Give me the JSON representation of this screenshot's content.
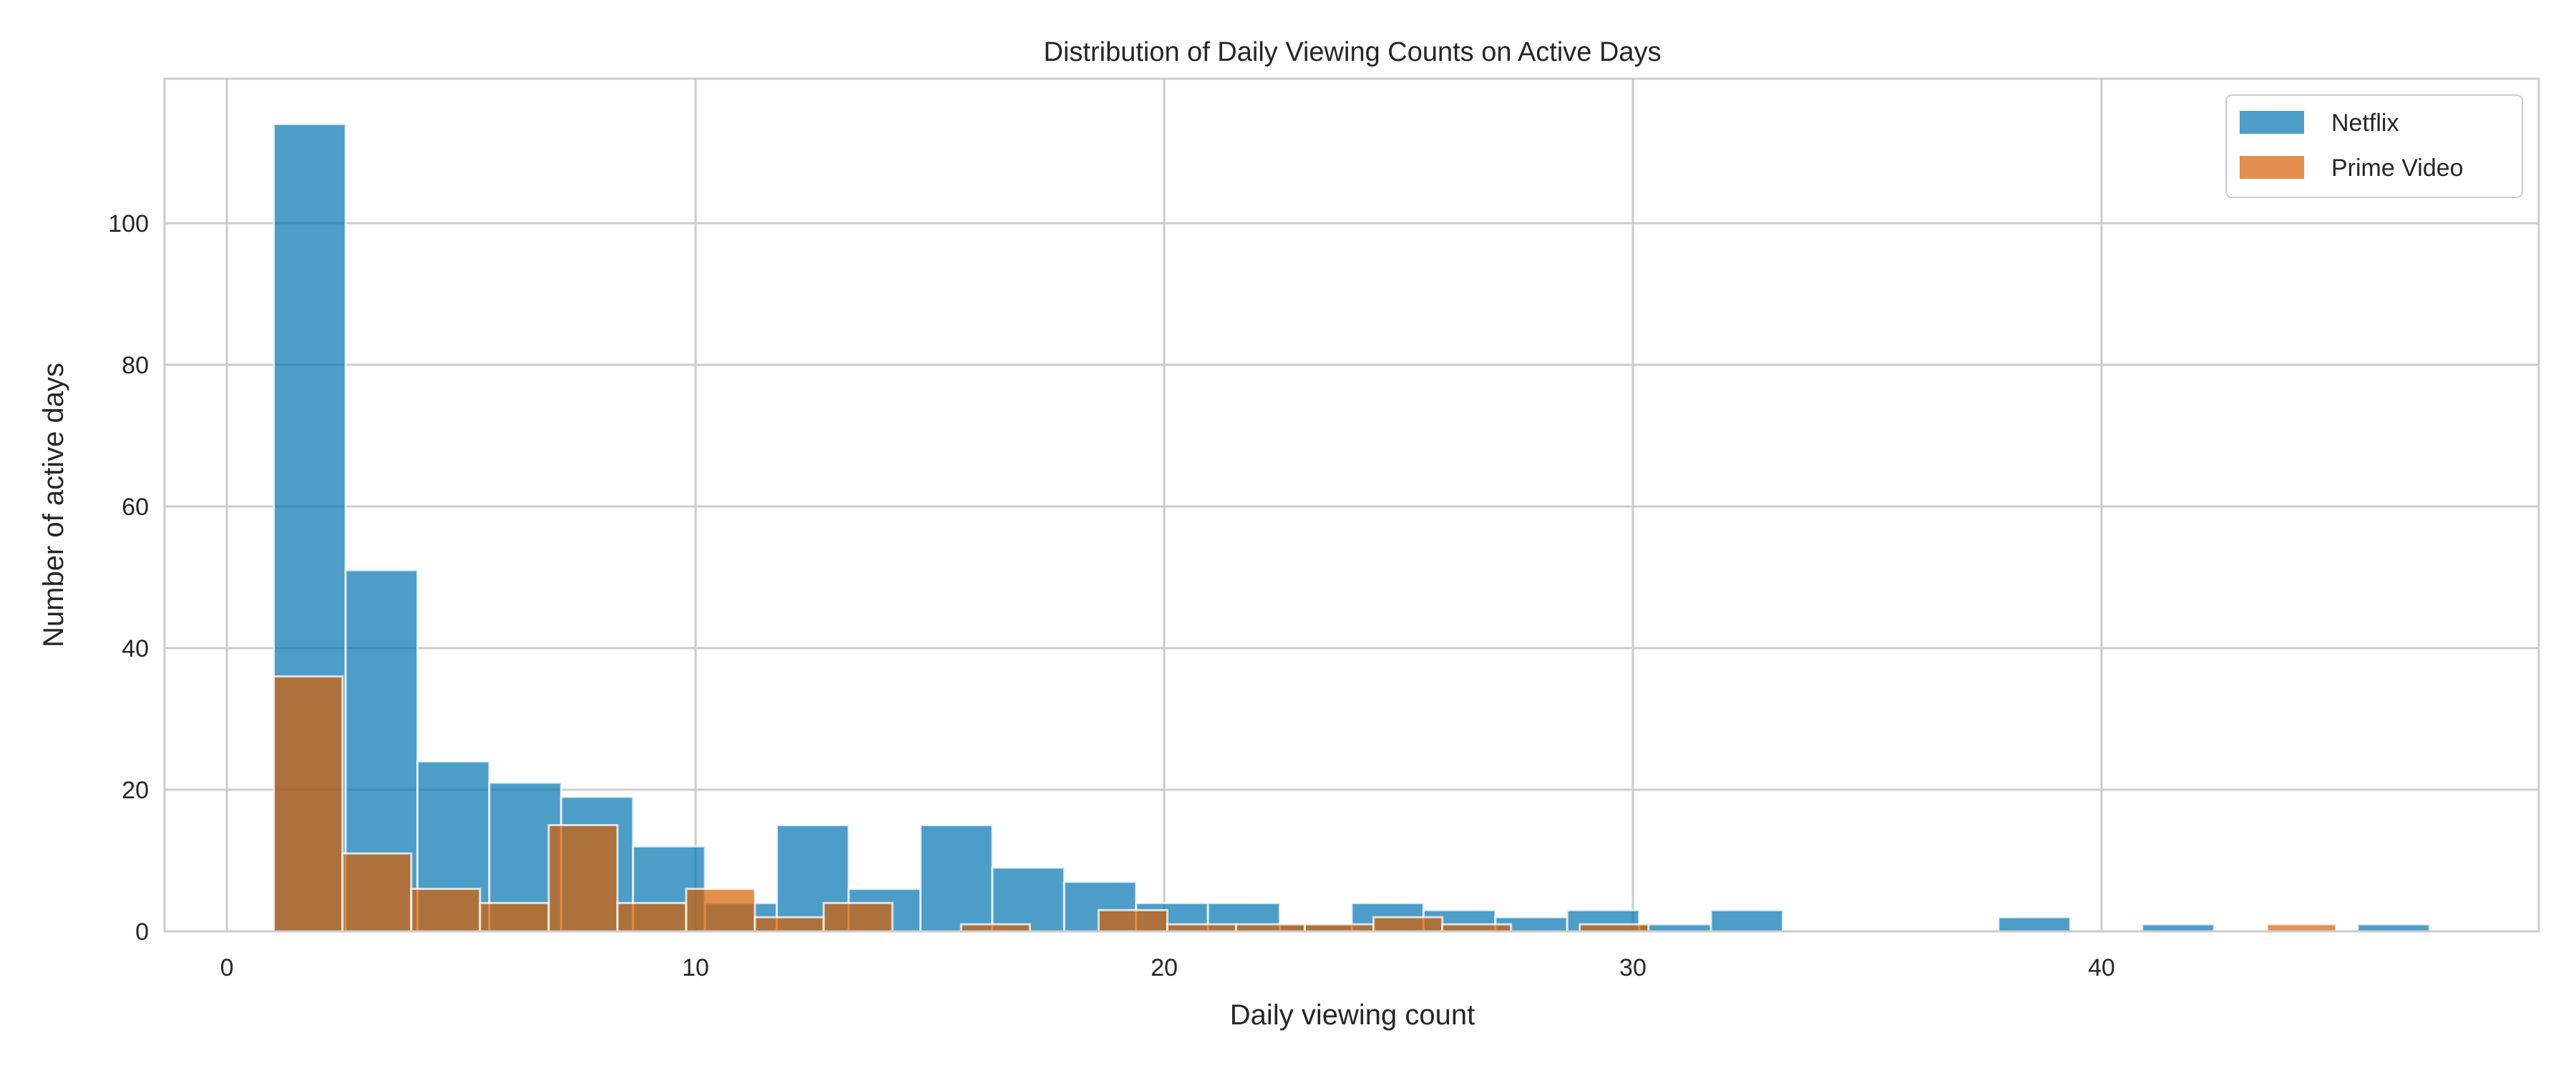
{
  "chart_data": {
    "type": "histogram",
    "title": "Distribution of Daily Viewing Counts on Active Days",
    "xlabel": "Daily viewing count",
    "ylabel": "Number of active days",
    "xlim": [
      -1.33,
      49.33
    ],
    "ylim": [
      0,
      120.4
    ],
    "xticks": [
      0,
      10,
      20,
      30,
      40
    ],
    "yticks": [
      0,
      20,
      40,
      60,
      80,
      100
    ],
    "grid": true,
    "legend": "top-right",
    "series": [
      {
        "name": "Netflix",
        "color": "#0173b2",
        "bin_start": 1,
        "bin_end": 47,
        "counts": [
          114,
          51,
          24,
          21,
          19,
          12,
          4,
          15,
          6,
          15,
          9,
          7,
          4,
          4,
          1,
          4,
          3,
          2,
          3,
          1,
          3,
          0,
          0,
          0,
          2,
          0,
          1,
          0,
          0,
          1
        ]
      },
      {
        "name": "Prime Video",
        "color": "#d55e00",
        "bin_start": 1,
        "bin_end": 45,
        "counts": [
          36,
          11,
          6,
          4,
          15,
          4,
          6,
          2,
          4,
          0,
          1,
          0,
          3,
          1,
          1,
          1,
          2,
          1,
          0,
          1,
          0,
          0,
          0,
          0,
          0,
          0,
          0,
          0,
          0,
          1
        ]
      }
    ]
  }
}
